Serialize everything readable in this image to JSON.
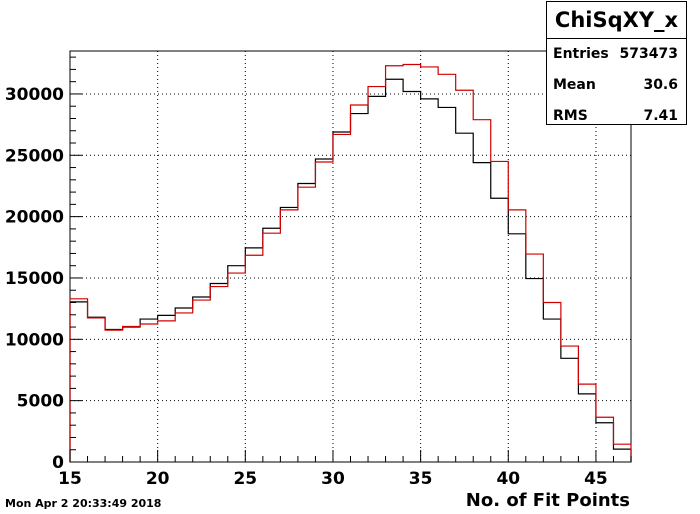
{
  "chart_data": {
    "type": "histogram",
    "xlabel": "No. of Fit Points",
    "xlim": [
      15,
      47
    ],
    "ylim": [
      0,
      33500
    ],
    "xticks": [
      15,
      20,
      25,
      30,
      35,
      40,
      45
    ],
    "yticks": [
      0,
      5000,
      10000,
      15000,
      20000,
      25000,
      30000
    ],
    "grid": true,
    "bin_edges": [
      15,
      16,
      17,
      18,
      19,
      20,
      21,
      22,
      23,
      24,
      25,
      26,
      27,
      28,
      29,
      30,
      31,
      32,
      33,
      34,
      35,
      36,
      37,
      38,
      39,
      40,
      41,
      42,
      43,
      44,
      45,
      46,
      47
    ],
    "series": [
      {
        "color": "#000000",
        "values": [
          13050,
          11800,
          10800,
          11000,
          11650,
          11950,
          12550,
          13450,
          14550,
          16000,
          17450,
          19050,
          20750,
          22700,
          24700,
          26900,
          28400,
          29800,
          31200,
          30200,
          29600,
          28900,
          26800,
          24400,
          21500,
          18600,
          14950,
          11650,
          8450,
          5550,
          3200,
          1050
        ]
      },
      {
        "color": "#d00000",
        "values": [
          13300,
          11750,
          10750,
          11050,
          11250,
          11500,
          12150,
          13200,
          14300,
          15400,
          16850,
          18650,
          20550,
          22400,
          24450,
          26700,
          29100,
          30600,
          32300,
          32400,
          32200,
          31600,
          30300,
          27900,
          24500,
          20550,
          16950,
          13000,
          9450,
          6350,
          3650,
          1450
        ]
      }
    ]
  },
  "stats_box": {
    "title": "ChiSqXY_x",
    "rows": [
      {
        "key": "Entries",
        "value": "573473"
      },
      {
        "key": "Mean",
        "value": "30.6"
      },
      {
        "key": "RMS",
        "value": "7.41"
      }
    ]
  },
  "footer": {
    "date": "Mon Apr  2 20:33:49 2018"
  }
}
